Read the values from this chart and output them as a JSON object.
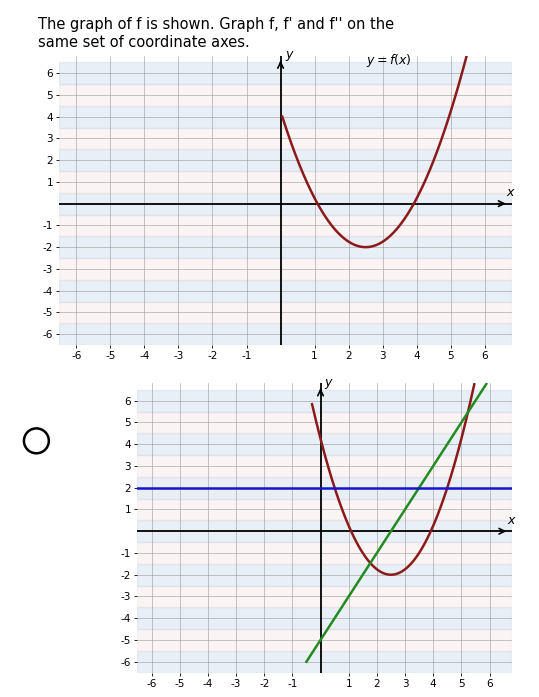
{
  "title_text": "The graph of f is shown. Graph f, f’ and f’’ on the\nsame set of coordinate axes.",
  "title_fontsize": 10.5,
  "fig_width": 5.39,
  "fig_height": 6.97,
  "top_graph": {
    "xlim": [
      -6.5,
      6.8
    ],
    "ylim": [
      -6.5,
      6.8
    ],
    "xticks": [
      -6,
      -5,
      -4,
      -3,
      -2,
      -1,
      1,
      2,
      3,
      4,
      5,
      6
    ],
    "yticks": [
      -6,
      -5,
      -4,
      -3,
      -2,
      -1,
      1,
      2,
      3,
      4,
      5,
      6
    ],
    "curve_color": "#8B1A1A",
    "grid_major_color": "#b8cce4",
    "grid_minor_color": "#f2dcdb",
    "vertex_x": 2.5,
    "vertex_y": -2.0,
    "f_xstart": 0.05,
    "f_xend": 6.1
  },
  "bottom_graph": {
    "xlim": [
      -6.5,
      6.8
    ],
    "ylim": [
      -6.5,
      6.8
    ],
    "xticks": [
      -6,
      -5,
      -4,
      -3,
      -2,
      -1,
      1,
      2,
      3,
      4,
      5,
      6
    ],
    "yticks": [
      -6,
      -5,
      -4,
      -3,
      -2,
      -1,
      1,
      2,
      3,
      4,
      5,
      6
    ],
    "f_color": "#8B1A1A",
    "fprime_color": "#228B22",
    "fdoubleprime_color": "#1414CC",
    "grid_major_color": "#b8cce4",
    "grid_minor_color": "#f2dcdb",
    "vertex_x": 2.5,
    "vertex_y": -2.0,
    "fdoubleprime_val": 2.0,
    "f_xstart": -0.3,
    "f_xend": 6.1,
    "fp_xstart": -0.5,
    "fp_xend": 6.1
  }
}
